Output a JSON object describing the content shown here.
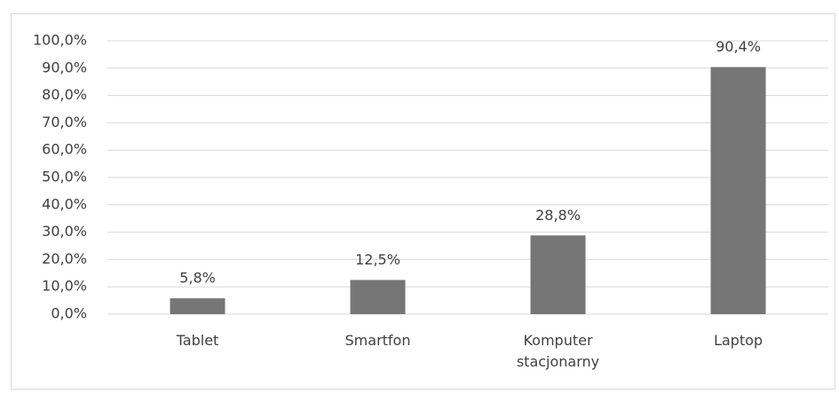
{
  "chart_data": {
    "type": "bar",
    "categories": [
      "Tablet",
      "Smartfon",
      "Komputer stacjonarny",
      "Laptop"
    ],
    "values": [
      5.8,
      12.5,
      28.8,
      90.4
    ],
    "value_labels": [
      "5,8%",
      "12,5%",
      "28,8%",
      "90,4%"
    ],
    "color": "#767676",
    "ylim": [
      0,
      100
    ],
    "yticks": [
      {
        "value": 0,
        "label": "0,0%"
      },
      {
        "value": 10,
        "label": "10,0%"
      },
      {
        "value": 20,
        "label": "20,0%"
      },
      {
        "value": 30,
        "label": "30,0%"
      },
      {
        "value": 40,
        "label": "40,0%"
      },
      {
        "value": 50,
        "label": "50,0%"
      },
      {
        "value": 60,
        "label": "60,0%"
      },
      {
        "value": 70,
        "label": "70,0%"
      },
      {
        "value": 80,
        "label": "80,0%"
      },
      {
        "value": 90,
        "label": "90,0%"
      },
      {
        "value": 100,
        "label": "100,0%"
      }
    ],
    "grid": true
  }
}
